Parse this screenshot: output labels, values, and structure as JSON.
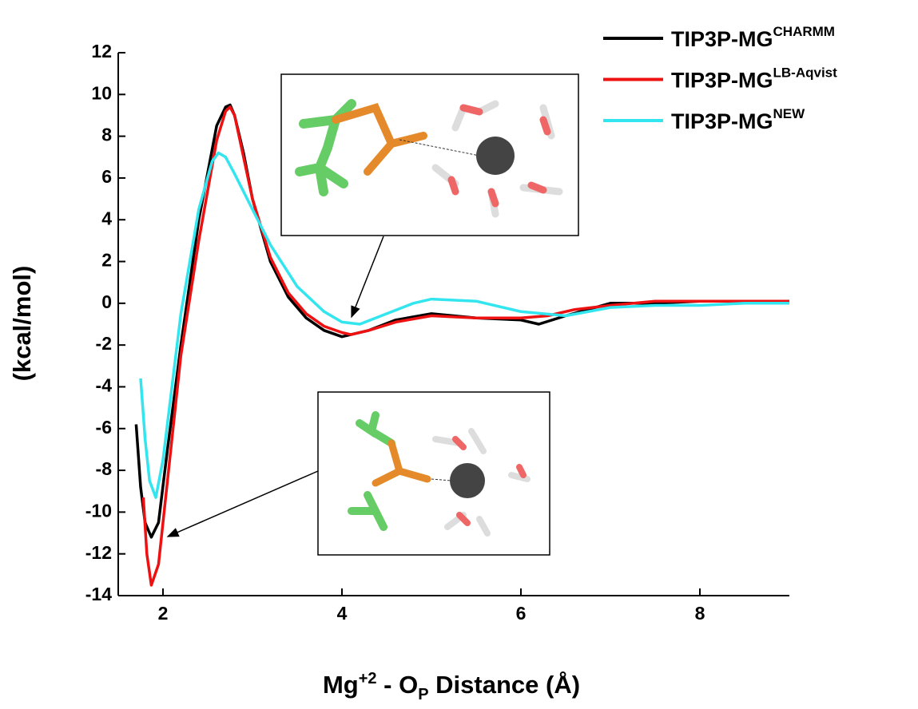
{
  "chart_data": {
    "type": "line",
    "y_label": "(kcal/mol)",
    "x_label": {
      "base": "Mg",
      "sup": "+2",
      "middle": " - O",
      "sub": "P",
      "rest": " Distance (Å)"
    },
    "xlim": [
      1.5,
      9
    ],
    "ylim": [
      -14,
      12
    ],
    "xticks": [
      2,
      4,
      6,
      8
    ],
    "yticks": [
      -14,
      -12,
      -10,
      -8,
      -6,
      -4,
      -2,
      0,
      2,
      4,
      6,
      8,
      10,
      12
    ],
    "legend": "top-right",
    "series": [
      {
        "name": "TIP3P-MG",
        "name_sup": "CHARMM",
        "color": "#000000",
        "x": [
          1.7,
          1.75,
          1.8,
          1.87,
          1.95,
          2.05,
          2.2,
          2.4,
          2.6,
          2.7,
          2.75,
          2.8,
          2.9,
          3.0,
          3.2,
          3.4,
          3.6,
          3.8,
          4.0,
          4.1,
          4.3,
          4.6,
          5.0,
          5.5,
          6.0,
          6.2,
          6.5,
          7.0,
          7.5,
          8.0,
          8.5,
          9.0
        ],
        "values": [
          -5.8,
          -8.8,
          -10.5,
          -11.2,
          -10.5,
          -7,
          -2,
          4,
          8.5,
          9.4,
          9.5,
          9.0,
          7.2,
          5.0,
          2.0,
          0.3,
          -0.7,
          -1.3,
          -1.6,
          -1.5,
          -1.3,
          -0.8,
          -0.5,
          -0.7,
          -0.8,
          -1.0,
          -0.6,
          0.0,
          0.0,
          0.1,
          0.1,
          0.1
        ]
      },
      {
        "name": "TIP3P-MG",
        "name_sup": "LB-Aqvist",
        "color": "#ee1111",
        "x": [
          1.78,
          1.82,
          1.87,
          1.95,
          2.05,
          2.2,
          2.4,
          2.6,
          2.7,
          2.75,
          2.8,
          2.9,
          3.0,
          3.2,
          3.4,
          3.6,
          3.8,
          4.0,
          4.1,
          4.3,
          4.6,
          5.0,
          5.5,
          6.0,
          6.3,
          6.6,
          7.0,
          7.5,
          8.0,
          8.5,
          9.0
        ],
        "values": [
          -9.3,
          -12,
          -13.5,
          -12.5,
          -8.5,
          -2.5,
          3,
          7.8,
          9.2,
          9.4,
          9.0,
          7.0,
          5.0,
          2.2,
          0.5,
          -0.5,
          -1.1,
          -1.4,
          -1.5,
          -1.3,
          -0.9,
          -0.6,
          -0.7,
          -0.7,
          -0.6,
          -0.3,
          -0.1,
          0.1,
          0.1,
          0.1,
          0.1
        ]
      },
      {
        "name": "TIP3P-MG",
        "name_sup": "NEW",
        "color": "#33e5ee",
        "x": [
          1.75,
          1.8,
          1.85,
          1.92,
          2.0,
          2.1,
          2.2,
          2.4,
          2.55,
          2.62,
          2.7,
          2.8,
          3.0,
          3.2,
          3.5,
          3.8,
          4.0,
          4.2,
          4.5,
          4.8,
          5.0,
          5.5,
          6.0,
          6.5,
          7.0,
          7.5,
          8.0,
          8.5,
          9.0
        ],
        "values": [
          -3.6,
          -6.5,
          -8.5,
          -9.3,
          -7.5,
          -4,
          -0.5,
          4.5,
          6.8,
          7.2,
          7.0,
          6.2,
          4.5,
          2.8,
          0.8,
          -0.4,
          -0.9,
          -1.0,
          -0.5,
          0.0,
          0.2,
          0.1,
          -0.4,
          -0.6,
          -0.2,
          -0.1,
          -0.1,
          0.0,
          0.0
        ]
      }
    ]
  }
}
